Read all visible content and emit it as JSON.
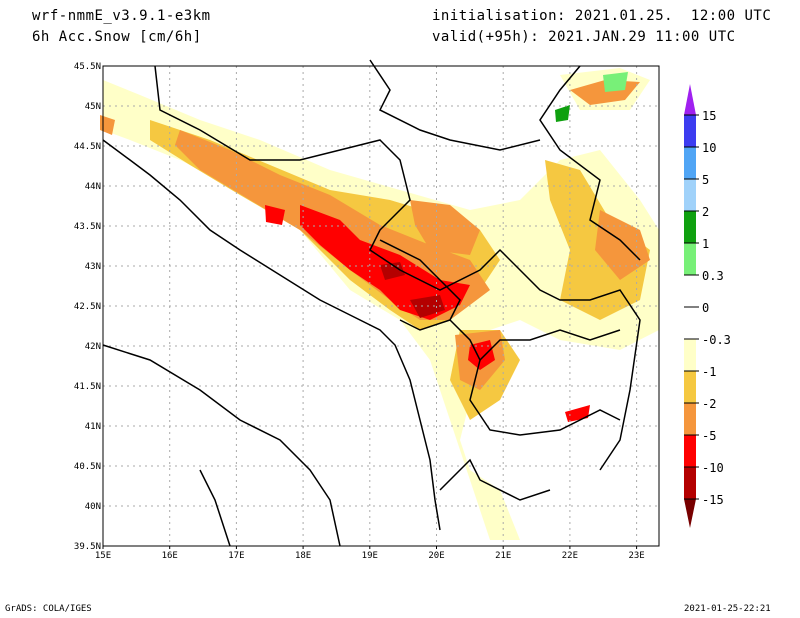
{
  "header": {
    "model": "wrf-nmmE_v3.9.1-e3km",
    "field": "6h Acc.Snow [cm/6h]",
    "init": "initialisation: 2021.01.25.  12:00 UTC",
    "valid": "valid(+95h): 2021.JAN.29 11:00 UTC"
  },
  "map": {
    "lon_labels": [
      "15E",
      "16E",
      "17E",
      "18E",
      "19E",
      "20E",
      "21E",
      "22E",
      "23E"
    ],
    "lat_labels": [
      "45.5N",
      "45N",
      "44.5N",
      "44N",
      "43.5N",
      "43N",
      "42.5N",
      "42N",
      "41.5N",
      "41N",
      "40.5N",
      "40N",
      "39.5N"
    ]
  },
  "colorbar": {
    "labels": [
      "15",
      "10",
      "5",
      "2",
      "1",
      "0.3",
      "0",
      "-0.3",
      "-1",
      "-2",
      "-5",
      "-10",
      "-15"
    ],
    "colors": [
      "#a020f0",
      "#3c3cf0",
      "#50a5f5",
      "#a0d2fa",
      "#0fa00f",
      "#78f078",
      "#ffffff",
      "#ffffff",
      "#ffffc8",
      "#f5c841",
      "#f5963c",
      "#ff0000",
      "#b40000",
      "#780000"
    ]
  },
  "footer": {
    "left": "GrADS: COLA/IGES",
    "right": "2021-01-25-22:21"
  }
}
